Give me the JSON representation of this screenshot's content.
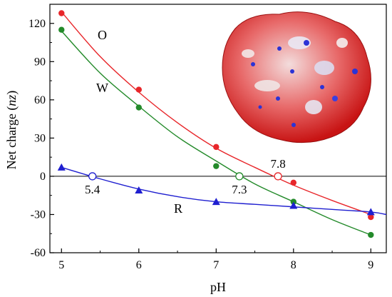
{
  "chart_data": {
    "type": "scatter",
    "xlabel": "pH",
    "ylabel_main": "Net charge (",
    "ylabel_italic": "nz",
    "ylabel_close": ")",
    "xlim": [
      4.85,
      9.2
    ],
    "ylim": [
      -60,
      135
    ],
    "xticks": [
      5,
      6,
      7,
      8,
      9
    ],
    "yticks": [
      -60,
      -30,
      0,
      30,
      60,
      90,
      120
    ],
    "xtick_labels": [
      "5",
      "6",
      "7",
      "8",
      "9"
    ],
    "ytick_labels": [
      "-60",
      "-30",
      "0",
      "30",
      "60",
      "90",
      "120"
    ],
    "zero_line": true,
    "series": [
      {
        "name": "O",
        "color": "#e8262a",
        "marker": "circle",
        "x": [
          5,
          6,
          7,
          8,
          9
        ],
        "y": [
          128,
          68,
          23,
          -5,
          -32
        ],
        "fit_x": [
          5,
          5.5,
          6,
          6.5,
          7,
          7.5,
          8,
          8.5,
          9
        ],
        "fit_y": [
          129,
          94,
          66,
          42,
          22,
          7,
          -7,
          -19,
          -30
        ]
      },
      {
        "name": "W",
        "color": "#238a2a",
        "marker": "circle",
        "x": [
          5,
          6,
          7,
          8,
          9
        ],
        "y": [
          115,
          54,
          8,
          -20,
          -46
        ],
        "fit_x": [
          5,
          5.5,
          6,
          6.5,
          7,
          7.5,
          8,
          8.5,
          9
        ],
        "fit_y": [
          114,
          81,
          55,
          31,
          12,
          -6,
          -20,
          -34,
          -46
        ]
      },
      {
        "name": "R",
        "color": "#1f1fd0",
        "marker": "triangle",
        "x": [
          5,
          6,
          7,
          8,
          9
        ],
        "y": [
          7,
          -11,
          -20,
          -23,
          -28
        ],
        "fit_x": [
          5,
          5.5,
          6,
          6.5,
          7,
          7.5,
          8,
          8.5,
          9,
          9.2
        ],
        "fit_y": [
          7,
          -2,
          -10,
          -16,
          -20,
          -22,
          -24,
          -26,
          -28,
          -30
        ]
      }
    ],
    "zero_crossings": [
      {
        "x": 5.4,
        "label": "5.4",
        "color": "#1f1fd0"
      },
      {
        "x": 7.3,
        "label": "7.3",
        "color": "#238a2a"
      },
      {
        "x": 7.8,
        "label": "7.8",
        "color": "#e8262a"
      }
    ],
    "inset": {
      "description_icon": "protein-electrostatic-surface-icon"
    }
  }
}
